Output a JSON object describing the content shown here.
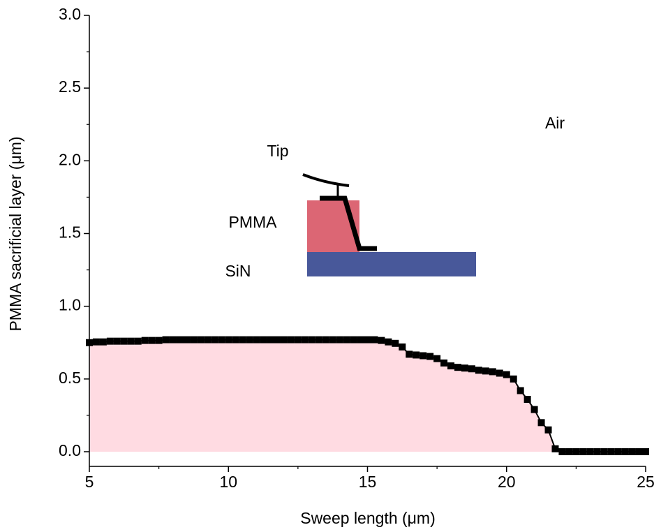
{
  "chart_data": {
    "type": "area-line",
    "xlabel": "Sweep length (μm)",
    "ylabel": "PMMA sacrificial layer (μm)",
    "annotations": [
      "Tip",
      "PMMA",
      "SiN",
      "Air"
    ],
    "x": [
      5,
      5.25,
      5.5,
      5.75,
      6,
      6.25,
      6.5,
      6.75,
      7,
      7.25,
      7.5,
      7.75,
      8,
      8.25,
      8.5,
      8.75,
      9,
      9.25,
      9.5,
      9.75,
      10,
      10.25,
      10.5,
      10.75,
      11,
      11.25,
      11.5,
      11.75,
      12,
      12.25,
      12.5,
      12.75,
      13,
      13.25,
      13.5,
      13.75,
      14,
      14.25,
      14.5,
      14.75,
      15,
      15.25,
      15.5,
      15.75,
      16,
      16.25,
      16.5,
      16.75,
      17,
      17.25,
      17.5,
      17.75,
      18,
      18.25,
      18.5,
      18.75,
      19,
      19.25,
      19.5,
      19.75,
      20,
      20.25,
      20.5,
      20.75,
      21,
      21.25,
      21.5,
      21.75,
      22,
      22.25,
      22.5,
      22.75,
      23,
      23.25,
      23.5,
      23.75,
      24,
      24.25,
      24.5,
      24.75,
      25
    ],
    "values": [
      0.75,
      0.755,
      0.755,
      0.76,
      0.76,
      0.76,
      0.76,
      0.76,
      0.765,
      0.765,
      0.765,
      0.77,
      0.77,
      0.77,
      0.77,
      0.77,
      0.77,
      0.77,
      0.77,
      0.77,
      0.77,
      0.77,
      0.77,
      0.77,
      0.77,
      0.77,
      0.77,
      0.77,
      0.77,
      0.77,
      0.77,
      0.77,
      0.77,
      0.77,
      0.77,
      0.77,
      0.77,
      0.77,
      0.77,
      0.77,
      0.77,
      0.77,
      0.765,
      0.755,
      0.745,
      0.72,
      0.67,
      0.665,
      0.66,
      0.655,
      0.64,
      0.61,
      0.59,
      0.58,
      0.575,
      0.57,
      0.56,
      0.555,
      0.55,
      0.54,
      0.53,
      0.5,
      0.42,
      0.36,
      0.29,
      0.2,
      0.15,
      0.02,
      0,
      0,
      0,
      0,
      0,
      0,
      0,
      0,
      0,
      0,
      0,
      0,
      0
    ],
    "color": "#000000",
    "fill_color": "#ffdbe2",
    "xlim": [
      5,
      25
    ],
    "xticks": [
      5,
      10,
      15,
      20,
      25
    ],
    "ylim": [
      0,
      3
    ],
    "yticks": [
      {
        "value": 0,
        "label": "0.0"
      },
      0.5,
      {
        "value": 1,
        "label": "1.0"
      },
      1.5,
      {
        "value": 2,
        "label": "2.0"
      },
      2.5,
      {
        "value": 3,
        "label": "3.0"
      }
    ]
  }
}
